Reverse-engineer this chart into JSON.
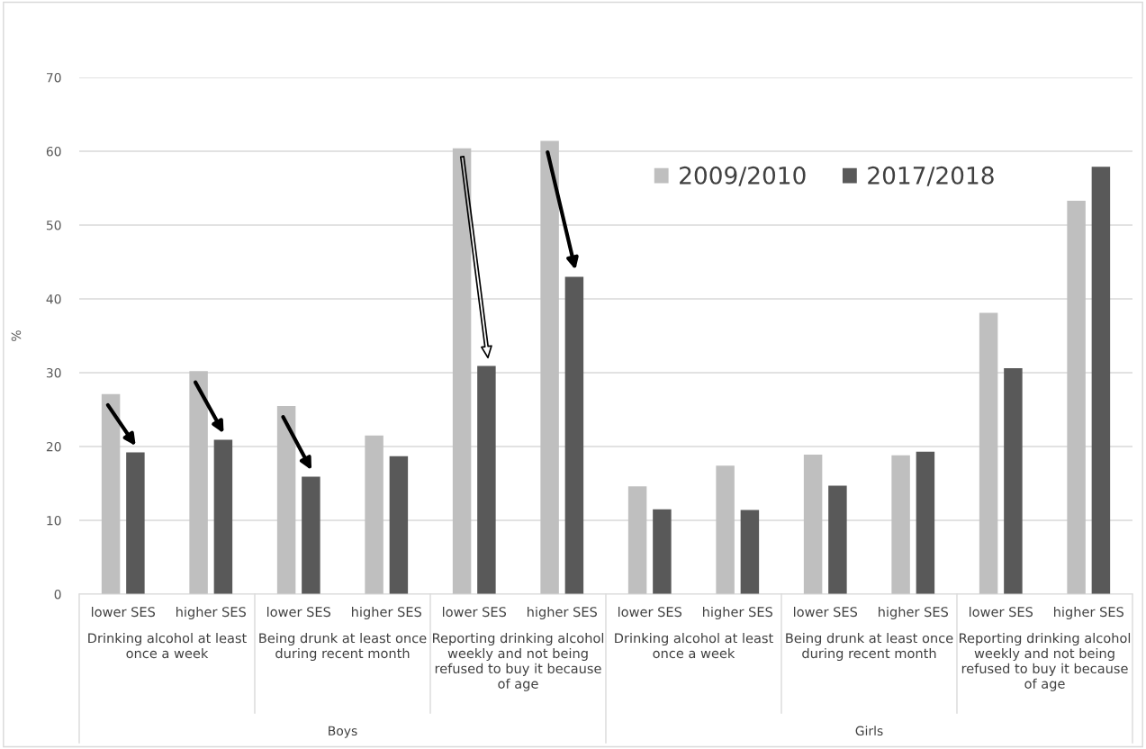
{
  "chart_data": {
    "type": "bar",
    "ylabel": "%",
    "categories": [
      "lower SES",
      "higher SES",
      "lower SES",
      "higher SES",
      "lower SES",
      "higher SES",
      "lower SES",
      "higher SES",
      "lower SES",
      "higher SES",
      "lower SES",
      "higher SES"
    ],
    "series": [
      {
        "name": "2009/2010",
        "color": "#bfbfbf",
        "values": [
          27.1,
          30.2,
          25.5,
          21.5,
          60.4,
          61.4,
          14.6,
          17.4,
          18.9,
          18.8,
          38.1,
          53.3
        ]
      },
      {
        "name": "2017/2018",
        "color": "#595959",
        "values": [
          19.2,
          20.9,
          15.9,
          18.7,
          30.9,
          43.0,
          11.5,
          11.4,
          14.7,
          19.3,
          30.6,
          57.9
        ]
      }
    ],
    "ylim": [
      0,
      70
    ],
    "yticks": [
      0,
      10,
      20,
      30,
      40,
      50,
      60,
      70
    ],
    "grid": "y",
    "legend": "top right",
    "annotations": [
      "Drinking alcohol at least\nonce a week",
      "Being drunk at least once\nduring recent month",
      "Reporting drinking alcohol\nweekly and not being\nrefused to buy it because\nof age",
      "Drinking alcohol at least\nonce a week",
      "Being drunk at least once\nduring recent month",
      "Reporting drinking alcohol\nweekly and not being\nrefused to buy it because\nof age",
      "Boys",
      "Girls"
    ]
  }
}
